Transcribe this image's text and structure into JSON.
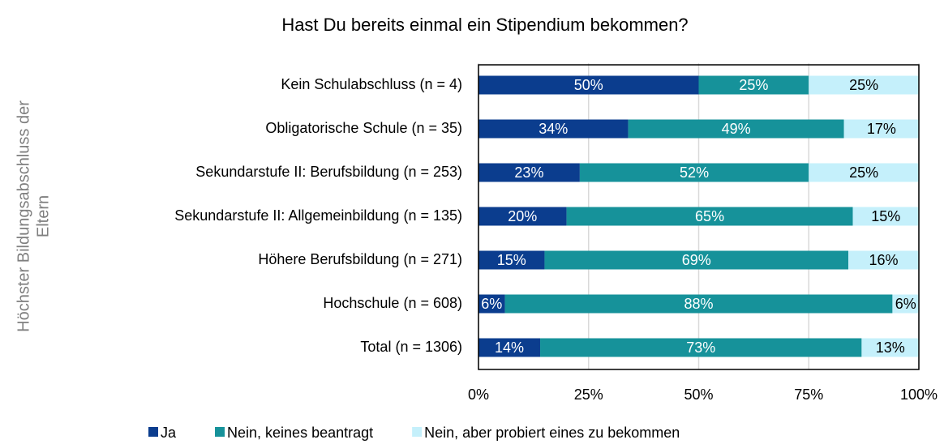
{
  "chart_data": {
    "type": "stacked_barh",
    "title": "Hast Du bereits einmal ein Stipendium bekommen?",
    "ylabel": [
      "Höchster Bildungsabschluss der",
      "Eltern"
    ],
    "categories": [
      "Kein Schulabschluss (n = 4)",
      "Obligatorische Schule (n = 35)",
      "Sekundarstufe II: Berufsbildung (n = 253)",
      "Sekundarstufe II: Allgemeinbildung (n = 135)",
      "Höhere Berufsbildung (n = 271)",
      "Hochschule (n = 608)",
      "Total (n = 1306)"
    ],
    "series": [
      {
        "name": "Ja",
        "color": "#0b3d8e",
        "label_color": "#ffffff",
        "values": [
          50,
          34,
          23,
          20,
          15,
          6,
          14
        ],
        "value_labels": [
          "50%",
          "34%",
          "23%",
          "20%",
          "15%",
          "6%",
          "14%"
        ]
      },
      {
        "name": "Nein, keines beantragt",
        "color": "#16929a",
        "label_color": "#ffffff",
        "values": [
          25,
          49,
          52,
          65,
          69,
          88,
          73
        ],
        "value_labels": [
          "25%",
          "49%",
          "52%",
          "65%",
          "69%",
          "88%",
          "73%"
        ]
      },
      {
        "name": "Nein, aber probiert eines zu bekommen",
        "color": "#c5f0fb",
        "label_color": "#000000",
        "values": [
          25,
          17,
          25,
          15,
          16,
          6,
          13
        ],
        "value_labels": [
          "25%",
          "17%",
          "25%",
          "15%",
          "16%",
          "6%",
          "13%"
        ]
      }
    ],
    "xlim": [
      0,
      100
    ],
    "xticks": [
      {
        "value": 0,
        "label": "0%"
      },
      {
        "value": 25,
        "label": "25%"
      },
      {
        "value": 50,
        "label": "50%"
      },
      {
        "value": 75,
        "label": "75%"
      },
      {
        "value": 100,
        "label": "100%"
      }
    ],
    "grid": true,
    "legend": "bottom"
  }
}
